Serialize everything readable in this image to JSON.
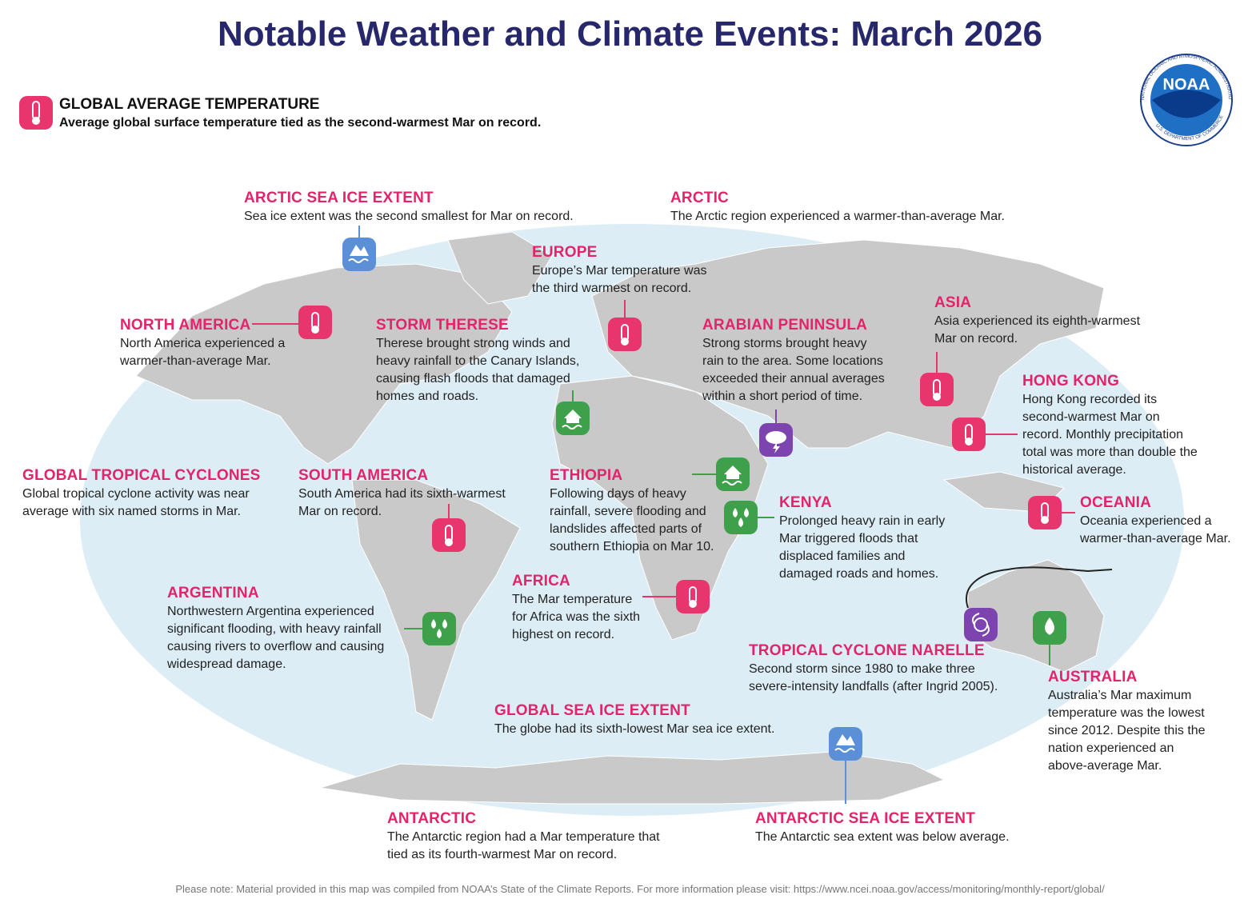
{
  "title": "Notable Weather and Climate Events: March 2026",
  "global": {
    "heading": "GLOBAL AVERAGE TEMPERATURE",
    "text": "Average global surface temperature tied as the second-warmest Mar on record."
  },
  "logo": {
    "name": "NOAA",
    "ring_top": "NATIONAL OCEANIC AND ATMOSPHERIC ADMINISTRATION",
    "ring_bottom": "U.S. DEPARTMENT OF COMMERCE"
  },
  "events": [
    {
      "heading": "ARCTIC SEA ICE EXTENT",
      "lines": [
        "Sea ice extent was the second smallest for Mar on record."
      ]
    },
    {
      "heading": "ARCTIC",
      "lines": [
        "The Arctic region experienced a warmer-than-average Mar."
      ]
    },
    {
      "heading": "EUROPE",
      "lines": [
        "Europe’s Mar temperature was",
        "the third warmest on record."
      ]
    },
    {
      "heading": "NORTH AMERICA",
      "lines": [
        "North America experienced a",
        "warmer-than-average Mar."
      ]
    },
    {
      "heading": "STORM THERESE",
      "lines": [
        "Therese brought strong winds and",
        "heavy rainfall to the Canary Islands,",
        "causing flash floods that damaged",
        "homes and roads."
      ]
    },
    {
      "heading": "ARABIAN PENINSULA",
      "lines": [
        "Strong storms brought heavy",
        "rain to the area. Some locations",
        "exceeded their annual averages",
        "within a short period of time."
      ]
    },
    {
      "heading": "ASIA",
      "lines": [
        "Asia experienced its eighth-warmest",
        "Mar on record."
      ]
    },
    {
      "heading": "HONG KONG",
      "lines": [
        "Hong Kong recorded its",
        "second-warmest Mar on",
        "record. Monthly precipitation",
        "total was more than double the",
        "historical average."
      ]
    },
    {
      "heading": "GLOBAL TROPICAL CYCLONES",
      "lines": [
        "Global tropical cyclone activity was near",
        "average with six named storms in Mar."
      ]
    },
    {
      "heading": "SOUTH AMERICA",
      "lines": [
        "South America had its sixth-warmest",
        "Mar on record."
      ]
    },
    {
      "heading": "ETHIOPIA",
      "lines": [
        "Following days of heavy",
        "rainfall, severe flooding and",
        "landslides affected parts of",
        "southern Ethiopia on Mar 10."
      ]
    },
    {
      "heading": "KENYA",
      "lines": [
        "Prolonged heavy rain in early",
        "Mar triggered floods that",
        "displaced families and",
        "damaged roads and homes."
      ]
    },
    {
      "heading": "OCEANIA",
      "lines": [
        "Oceania experienced a",
        "warmer-than-average Mar."
      ]
    },
    {
      "heading": "ARGENTINA",
      "lines": [
        "Northwestern Argentina experienced",
        "significant flooding, with heavy rainfall",
        "causing rivers to overflow and causing",
        "widespread damage."
      ]
    },
    {
      "heading": "AFRICA",
      "lines": [
        "The Mar temperature",
        "for Africa was the sixth",
        "highest on record."
      ]
    },
    {
      "heading": "TROPICAL CYCLONE NARELLE",
      "lines": [
        "Second storm since 1980 to make three",
        "severe-intensity landfalls (after Ingrid 2005)."
      ]
    },
    {
      "heading": "AUSTRALIA",
      "lines": [
        "Australia’s Mar maximum",
        "temperature was the lowest",
        "since 2012. Despite this the",
        "nation experienced an",
        "above-average Mar."
      ]
    },
    {
      "heading": "GLOBAL SEA ICE EXTENT",
      "lines": [
        "The globe had its sixth-lowest Mar sea ice extent."
      ]
    },
    {
      "heading": "ANTARCTIC",
      "lines": [
        "The Antarctic region had a Mar temperature that",
        "tied as its fourth-warmest Mar on record."
      ]
    },
    {
      "heading": "ANTARCTIC SEA ICE EXTENT",
      "lines": [
        "The Antarctic sea extent was below average."
      ]
    }
  ],
  "note": "Please note: Material provided in this map was compiled from NOAA’s State of the Climate Reports. For more information please visit: https://www.ncei.noaa.gov/access/monitoring/monthly-report/global/"
}
